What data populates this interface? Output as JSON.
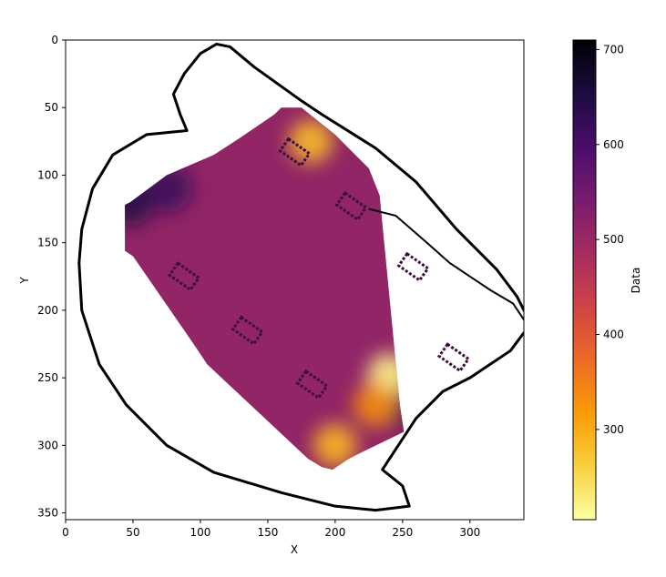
{
  "chart_data": {
    "type": "heatmap",
    "title": "",
    "xlabel": "X",
    "ylabel": "Y",
    "xlim": [
      0,
      340
    ],
    "ylim": [
      355,
      0
    ],
    "y_inverted": true,
    "x_ticks": [
      "0",
      "50",
      "100",
      "150",
      "200",
      "250",
      "300"
    ],
    "y_ticks": [
      "0",
      "50",
      "100",
      "150",
      "200",
      "250",
      "300",
      "350"
    ],
    "colorbar": {
      "label": "Data",
      "range": [
        205,
        710
      ],
      "ticks": [
        "300",
        "400",
        "500",
        "600",
        "700"
      ],
      "colormap": "inferno_r",
      "colors": [
        "#fcffa4",
        "#f7d13d",
        "#fb9b06",
        "#ed6925",
        "#cf4446",
        "#a52c60",
        "#781c6d",
        "#4a0c6b",
        "#1b0c41",
        "#000004"
      ]
    },
    "heat_region": {
      "polygon": [
        [
          160,
          50
        ],
        [
          175,
          50
        ],
        [
          200,
          70
        ],
        [
          225,
          95
        ],
        [
          233,
          115
        ],
        [
          248,
          270
        ],
        [
          251,
          290
        ],
        [
          220,
          305
        ],
        [
          210,
          310
        ],
        [
          198,
          318
        ],
        [
          190,
          316
        ],
        [
          180,
          310
        ],
        [
          105,
          240
        ],
        [
          95,
          225
        ],
        [
          50,
          160
        ],
        [
          44,
          156
        ],
        [
          44,
          122
        ],
        [
          48,
          120
        ],
        [
          75,
          100
        ],
        [
          110,
          85
        ],
        [
          130,
          72
        ],
        [
          155,
          55
        ]
      ],
      "typical_value": 510,
      "high_values": [
        {
          "x": 48,
          "y": 120,
          "value": 650
        },
        {
          "x": 244,
          "y": 270,
          "value": 640
        },
        {
          "x": 76,
          "y": 110,
          "value": 620
        }
      ],
      "low_values": [
        {
          "x": 182,
          "y": 75,
          "value": 280
        },
        {
          "x": 240,
          "y": 248,
          "value": 220
        },
        {
          "x": 200,
          "y": 300,
          "value": 290
        },
        {
          "x": 230,
          "y": 270,
          "value": 330
        }
      ]
    },
    "obstacles": [
      {
        "x": 170,
        "y": 83
      },
      {
        "x": 212,
        "y": 123
      },
      {
        "x": 88,
        "y": 175
      },
      {
        "x": 135,
        "y": 215
      },
      {
        "x": 183,
        "y": 255
      },
      {
        "x": 258,
        "y": 168
      },
      {
        "x": 288,
        "y": 235
      }
    ],
    "outer_boundary": [
      [
        112,
        3
      ],
      [
        122,
        5
      ],
      [
        140,
        20
      ],
      [
        175,
        45
      ],
      [
        190,
        55
      ],
      [
        230,
        80
      ],
      [
        260,
        105
      ],
      [
        290,
        140
      ],
      [
        320,
        170
      ],
      [
        335,
        190
      ],
      [
        345,
        210
      ],
      [
        330,
        230
      ],
      [
        300,
        250
      ],
      [
        280,
        260
      ],
      [
        260,
        280
      ],
      [
        235,
        318
      ],
      [
        250,
        330
      ],
      [
        255,
        345
      ],
      [
        230,
        348
      ],
      [
        200,
        345
      ],
      [
        160,
        335
      ],
      [
        110,
        320
      ],
      [
        75,
        300
      ],
      [
        45,
        270
      ],
      [
        25,
        240
      ],
      [
        12,
        200
      ],
      [
        10,
        165
      ],
      [
        12,
        140
      ],
      [
        20,
        110
      ],
      [
        35,
        85
      ],
      [
        60,
        70
      ],
      [
        90,
        67
      ],
      [
        85,
        55
      ],
      [
        80,
        40
      ],
      [
        88,
        25
      ],
      [
        100,
        10
      ]
    ],
    "inner_wall": [
      [
        225,
        125
      ],
      [
        245,
        130
      ],
      [
        268,
        150
      ],
      [
        285,
        165
      ],
      [
        300,
        175
      ],
      [
        315,
        185
      ],
      [
        332,
        195
      ],
      [
        342,
        210
      ]
    ]
  }
}
